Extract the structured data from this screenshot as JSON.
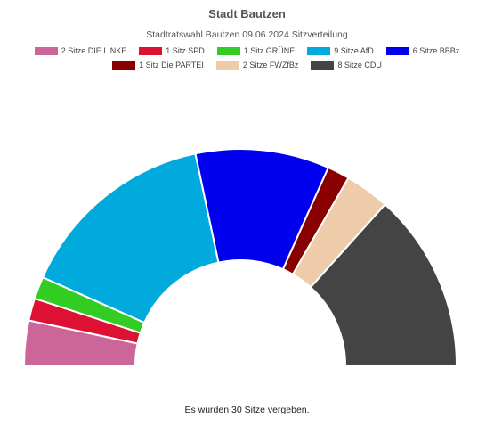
{
  "chart_data": {
    "type": "pie",
    "variant": "semicircle-parliament",
    "title": "Stadt Bautzen",
    "subtitle": "Stadtratswahl Bautzen 09.06.2024 Sitzverteilung",
    "total_seats": 30,
    "legend_placement": "top",
    "series": [
      {
        "label": "2 Sitze DIE LINKE",
        "value": 2,
        "color": "#cc6699"
      },
      {
        "label": "1 Sitz SPD",
        "value": 1,
        "color": "#dd1133"
      },
      {
        "label": "1 Sitz GRÜNE",
        "value": 1,
        "color": "#33cc22"
      },
      {
        "label": "9 Sitze AfD",
        "value": 9,
        "color": "#00aadd"
      },
      {
        "label": "6 Sitze BBBz",
        "value": 6,
        "color": "#0000ee"
      },
      {
        "label": "1 Sitz Die PARTEI",
        "value": 1,
        "color": "#880000"
      },
      {
        "label": "2 Sitze FWZfBz",
        "value": 2,
        "color": "#eeccaa"
      },
      {
        "label": "8 Sitze CDU",
        "value": 8,
        "color": "#444444"
      }
    ]
  },
  "footer": "Es wurden 30  Sitze vergeben."
}
